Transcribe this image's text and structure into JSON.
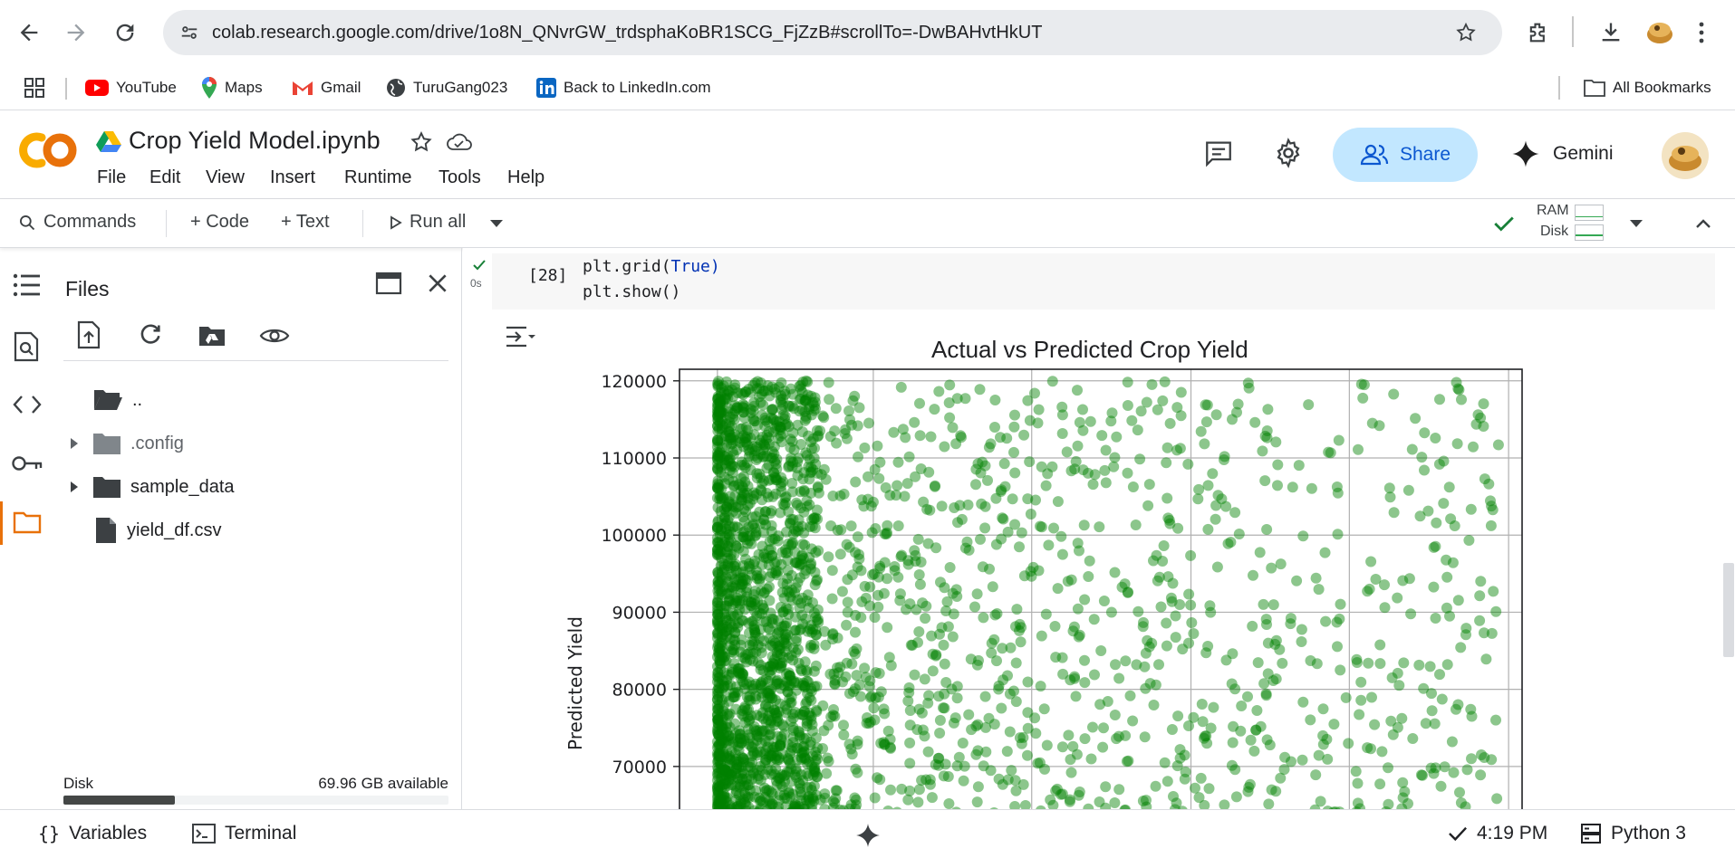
{
  "browser": {
    "url": "colab.research.google.com/drive/1o8N_QNvrGW_trdsphaKoBR1SCG_FjZzB#scrollTo=-DwBAHvtHkUT"
  },
  "bookmarks": {
    "items": [
      "YouTube",
      "Maps",
      "Gmail",
      "TuruGang023",
      "Back to LinkedIn.com"
    ],
    "all_label": "All Bookmarks"
  },
  "header": {
    "notebook_title": "Crop Yield Model.ipynb",
    "menu": [
      "File",
      "Edit",
      "View",
      "Insert",
      "Runtime",
      "Tools",
      "Help"
    ],
    "share_label": "Share",
    "gemini_label": "Gemini",
    "logo_text": "CO"
  },
  "toolbar": {
    "commands_label": "Commands",
    "code_label": "+ Code",
    "text_label": "+ Text",
    "run_all_label": "Run all",
    "ram_label": "RAM",
    "disk_label": "Disk"
  },
  "files_panel": {
    "title": "Files",
    "items": [
      {
        "name": "..",
        "type": "folder-open"
      },
      {
        "name": ".config",
        "type": "folder-hidden"
      },
      {
        "name": "sample_data",
        "type": "folder"
      },
      {
        "name": "yield_df.csv",
        "type": "file"
      }
    ],
    "disk_label": "Disk",
    "disk_available": "69.96 GB available",
    "disk_used_fraction": 0.29
  },
  "cell": {
    "execution_count": "[28]",
    "exec_time": "0s",
    "line1_pre": "plt.grid(",
    "line1_kw": "True",
    "line1_post": ")",
    "line2": "plt.show()"
  },
  "chart_data": {
    "type": "scatter",
    "title": "Actual vs Predicted Crop Yield",
    "xlabel": "",
    "ylabel": "Predicted Yield",
    "ylim_visible": [
      64000,
      121500
    ],
    "yticks": [
      70000,
      80000,
      90000,
      100000,
      110000,
      120000
    ],
    "ytick_labels": [
      "70000",
      "80000",
      "90000",
      "100000",
      "110000",
      "120000"
    ],
    "grid": true,
    "point_color": "#008000",
    "point_alpha": 0.45,
    "description_density": "dense cluster at low actual values, sparser toward high actual values",
    "x_domain": [
      0,
      1
    ],
    "points": []
  },
  "status": {
    "variables_label": "Variables",
    "terminal_label": "Terminal",
    "time": "4:19 PM",
    "runtime_label": "Python 3"
  },
  "colors": {
    "accent_orange": "#e8710a",
    "share_bg": "#c2e7ff",
    "share_text": "#0b57d0",
    "connected_green": "#188038"
  }
}
